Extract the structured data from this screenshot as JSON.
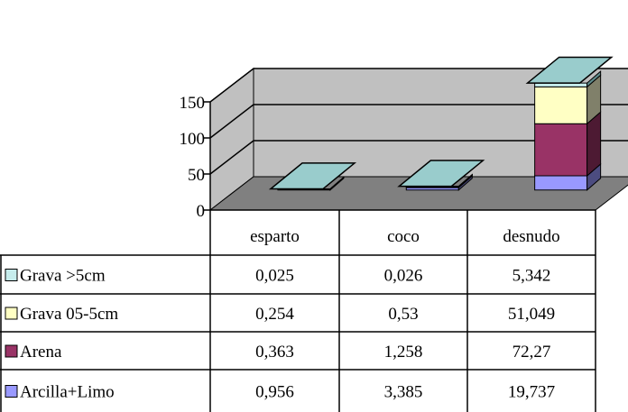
{
  "chart_data": {
    "type": "bar",
    "stacked": true,
    "three_d": true,
    "grid": true,
    "legend": "data-table",
    "categories": [
      "esparto",
      "coco",
      "desnudo"
    ],
    "ylim": [
      0,
      150
    ],
    "yticks": [
      0,
      50,
      100,
      150
    ],
    "ytick_labels": [
      "0",
      "50",
      "100",
      "150"
    ],
    "series": [
      {
        "name": "Grava >5cm",
        "values": [
          0.025,
          0.026,
          5.342
        ],
        "value_labels": [
          "0,025",
          "0,026",
          "5,342"
        ],
        "color": "#c6eded",
        "side_color": "#5f8c8c"
      },
      {
        "name": "Grava 05-5cm",
        "values": [
          0.254,
          0.53,
          51.049
        ],
        "value_labels": [
          "0,254",
          "0,53",
          "51,049"
        ],
        "color": "#ffffc4",
        "side_color": "#80806a"
      },
      {
        "name": "Arena",
        "values": [
          0.363,
          1.258,
          72.27
        ],
        "value_labels": [
          "0,363",
          "1,258",
          "72,27"
        ],
        "color": "#993366",
        "side_color": "#4d1a33"
      },
      {
        "name": "Arcilla+Limo",
        "values": [
          0.956,
          3.385,
          19.737
        ],
        "value_labels": [
          "0,956",
          "3,385",
          "19,737"
        ],
        "color": "#9999ff",
        "side_color": "#4c4c80"
      }
    ]
  },
  "colors": {
    "top_face": "#99cccc",
    "plot_wall": "#c0c0c0",
    "floor": "#808080"
  }
}
